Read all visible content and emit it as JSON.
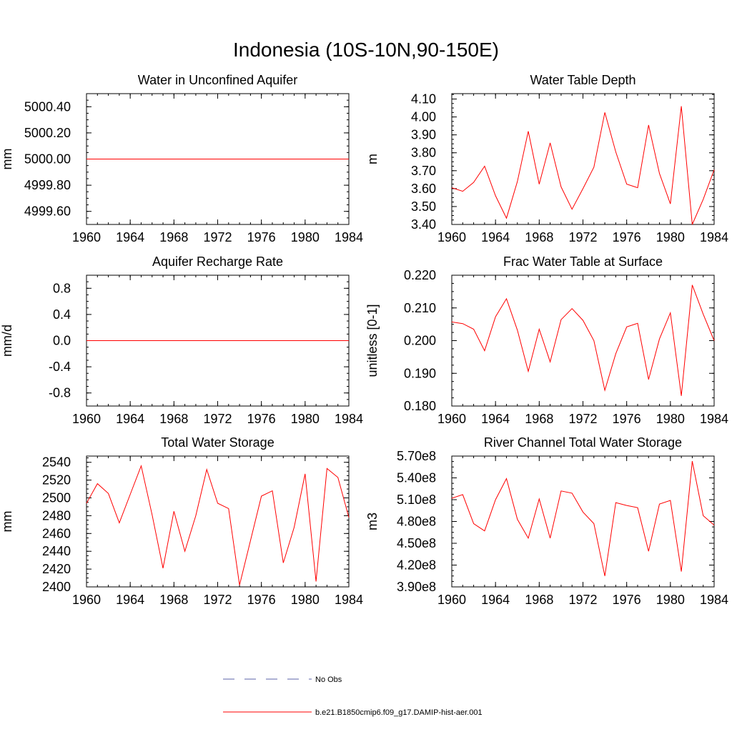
{
  "title": "Indonesia (10S-10N,90-150E)",
  "chart_data": [
    {
      "type": "line",
      "title": "Water in Unconfined Aquifer",
      "ylabel": "mm",
      "xlim": [
        1960,
        1984
      ],
      "ylim": [
        4999.5,
        5000.5
      ],
      "yticks": [
        4999.6,
        4999.8,
        5000.0,
        5000.2,
        5000.4
      ],
      "ytick_labels": [
        "4999.60",
        "4999.80",
        "5000.00",
        "5000.20",
        "5000.40"
      ],
      "xticks": [
        1960,
        1964,
        1968,
        1972,
        1976,
        1980,
        1984
      ],
      "xtick_labels": [
        "1960",
        "1964",
        "1968",
        "1972",
        "1976",
        "1980",
        "1984"
      ],
      "x": [
        1960,
        1961,
        1962,
        1963,
        1964,
        1965,
        1966,
        1967,
        1968,
        1969,
        1970,
        1971,
        1972,
        1973,
        1974,
        1975,
        1976,
        1977,
        1978,
        1979,
        1980,
        1981,
        1982,
        1983,
        1984
      ],
      "series": [
        {
          "name": "b.e21.B1850cmip6.f09_g17.DAMIP-hist-aer.001",
          "color": "#ff0000",
          "values": [
            5000,
            5000,
            5000,
            5000,
            5000,
            5000,
            5000,
            5000,
            5000,
            5000,
            5000,
            5000,
            5000,
            5000,
            5000,
            5000,
            5000,
            5000,
            5000,
            5000,
            5000,
            5000,
            5000,
            5000,
            5000
          ]
        }
      ]
    },
    {
      "type": "line",
      "title": "Water Table Depth",
      "ylabel": "m",
      "xlim": [
        1960,
        1984
      ],
      "ylim": [
        3.4,
        4.13
      ],
      "yticks": [
        3.4,
        3.5,
        3.6,
        3.7,
        3.8,
        3.9,
        4.0,
        4.1
      ],
      "ytick_labels": [
        "3.40",
        "3.50",
        "3.60",
        "3.70",
        "3.80",
        "3.90",
        "4.00",
        "4.10"
      ],
      "xticks": [
        1960,
        1964,
        1968,
        1972,
        1976,
        1980,
        1984
      ],
      "xtick_labels": [
        "1960",
        "1964",
        "1968",
        "1972",
        "1976",
        "1980",
        "1984"
      ],
      "x": [
        1960,
        1961,
        1962,
        1963,
        1964,
        1965,
        1966,
        1967,
        1968,
        1969,
        1970,
        1971,
        1972,
        1973,
        1974,
        1975,
        1976,
        1977,
        1978,
        1979,
        1980,
        1981,
        1982,
        1983,
        1984
      ],
      "series": [
        {
          "name": "b.e21.B1850cmip6.f09_g17.DAMIP-hist-aer.001",
          "color": "#ff0000",
          "values": [
            3.605,
            3.585,
            3.635,
            3.725,
            3.56,
            3.435,
            3.64,
            3.92,
            3.625,
            3.855,
            3.61,
            3.485,
            3.6,
            3.72,
            4.025,
            3.805,
            3.625,
            3.605,
            3.955,
            3.685,
            3.515,
            4.06,
            3.4,
            3.54,
            3.705
          ]
        }
      ]
    },
    {
      "type": "line",
      "title": "Aquifer Recharge Rate",
      "ylabel": "mm/d",
      "xlim": [
        1960,
        1984
      ],
      "ylim": [
        -1.0,
        1.0
      ],
      "yticks": [
        -0.8,
        -0.4,
        0.0,
        0.4,
        0.8
      ],
      "ytick_labels": [
        "-0.8",
        "-0.4",
        "0.0",
        "0.4",
        "0.8"
      ],
      "xticks": [
        1960,
        1964,
        1968,
        1972,
        1976,
        1980,
        1984
      ],
      "xtick_labels": [
        "1960",
        "1964",
        "1968",
        "1972",
        "1976",
        "1980",
        "1984"
      ],
      "x": [
        1960,
        1961,
        1962,
        1963,
        1964,
        1965,
        1966,
        1967,
        1968,
        1969,
        1970,
        1971,
        1972,
        1973,
        1974,
        1975,
        1976,
        1977,
        1978,
        1979,
        1980,
        1981,
        1982,
        1983,
        1984
      ],
      "series": [
        {
          "name": "b.e21.B1850cmip6.f09_g17.DAMIP-hist-aer.001",
          "color": "#ff0000",
          "values": [
            0,
            0,
            0,
            0,
            0,
            0,
            0,
            0,
            0,
            0,
            0,
            0,
            0,
            0,
            0,
            0,
            0,
            0,
            0,
            0,
            0,
            0,
            0,
            0,
            0
          ]
        }
      ]
    },
    {
      "type": "line",
      "title": "Frac Water Table at Surface",
      "ylabel": "unitless [0-1]",
      "xlim": [
        1960,
        1984
      ],
      "ylim": [
        0.18,
        0.22
      ],
      "yticks": [
        0.18,
        0.19,
        0.2,
        0.21,
        0.22
      ],
      "ytick_labels": [
        "0.180",
        "0.190",
        "0.200",
        "0.210",
        "0.220"
      ],
      "xticks": [
        1960,
        1964,
        1968,
        1972,
        1976,
        1980,
        1984
      ],
      "xtick_labels": [
        "1960",
        "1964",
        "1968",
        "1972",
        "1976",
        "1980",
        "1984"
      ],
      "x": [
        1960,
        1961,
        1962,
        1963,
        1964,
        1965,
        1966,
        1967,
        1968,
        1969,
        1970,
        1971,
        1972,
        1973,
        1974,
        1975,
        1976,
        1977,
        1978,
        1979,
        1980,
        1981,
        1982,
        1983,
        1984
      ],
      "series": [
        {
          "name": "b.e21.B1850cmip6.f09_g17.DAMIP-hist-aer.001",
          "color": "#ff0000",
          "values": [
            0.2057,
            0.2052,
            0.2035,
            0.1969,
            0.2073,
            0.2128,
            0.2032,
            0.1906,
            0.2035,
            0.1935,
            0.2064,
            0.2098,
            0.2062,
            0.2,
            0.1848,
            0.196,
            0.2042,
            0.2053,
            0.1881,
            0.2005,
            0.2085,
            0.1831,
            0.217,
            0.2081,
            0.2
          ]
        }
      ]
    },
    {
      "type": "line",
      "title": "Total Water Storage",
      "ylabel": "mm",
      "xlim": [
        1960,
        1984
      ],
      "ylim": [
        2400,
        2547
      ],
      "yticks": [
        2400,
        2420,
        2440,
        2460,
        2480,
        2500,
        2520,
        2540
      ],
      "ytick_labels": [
        "2400",
        "2420",
        "2440",
        "2460",
        "2480",
        "2500",
        "2520",
        "2540"
      ],
      "xticks": [
        1960,
        1964,
        1968,
        1972,
        1976,
        1980,
        1984
      ],
      "xtick_labels": [
        "1960",
        "1964",
        "1968",
        "1972",
        "1976",
        "1980",
        "1984"
      ],
      "x": [
        1960,
        1961,
        1962,
        1963,
        1964,
        1965,
        1966,
        1967,
        1968,
        1969,
        1970,
        1971,
        1972,
        1973,
        1974,
        1975,
        1976,
        1977,
        1978,
        1979,
        1980,
        1981,
        1982,
        1983,
        1984
      ],
      "series": [
        {
          "name": "b.e21.B1850cmip6.f09_g17.DAMIP-hist-aer.001",
          "color": "#ff0000",
          "values": [
            2494,
            2516,
            2505,
            2472,
            2504,
            2536,
            2481,
            2421,
            2485,
            2440,
            2480,
            2532,
            2494,
            2488,
            2402,
            2452,
            2502,
            2508,
            2427,
            2467,
            2527,
            2406,
            2533,
            2523,
            2478
          ]
        }
      ]
    },
    {
      "type": "line",
      "title": "River Channel Total Water Storage",
      "ylabel": "m3",
      "xlim": [
        1960,
        1984
      ],
      "ylim": [
        390000000.0,
        570000000.0
      ],
      "yticks": [
        390000000.0,
        420000000.0,
        450000000.0,
        480000000.0,
        510000000.0,
        540000000.0,
        570000000.0
      ],
      "ytick_labels": [
        "3.90e8",
        "4.20e8",
        "4.50e8",
        "4.80e8",
        "5.10e8",
        "5.40e8",
        "5.70e8"
      ],
      "xticks": [
        1960,
        1964,
        1968,
        1972,
        1976,
        1980,
        1984
      ],
      "xtick_labels": [
        "1960",
        "1964",
        "1968",
        "1972",
        "1976",
        "1980",
        "1984"
      ],
      "x": [
        1960,
        1961,
        1962,
        1963,
        1964,
        1965,
        1966,
        1967,
        1968,
        1969,
        1970,
        1971,
        1972,
        1973,
        1974,
        1975,
        1976,
        1977,
        1978,
        1979,
        1980,
        1981,
        1982,
        1983,
        1984
      ],
      "series": [
        {
          "name": "b.e21.B1850cmip6.f09_g17.DAMIP-hist-aer.001",
          "color": "#ff0000",
          "values": [
            512000000.0,
            517000000.0,
            477000000.0,
            467000000.0,
            510000000.0,
            539000000.0,
            483000000.0,
            457000000.0,
            511000000.0,
            457000000.0,
            522000000.0,
            519000000.0,
            493000000.0,
            477000000.0,
            405000000.0,
            506000000.0,
            502000000.0,
            499000000.0,
            439000000.0,
            504000000.0,
            509000000.0,
            411000000.0,
            563000000.0,
            488000000.0,
            475000000.0
          ]
        }
      ]
    }
  ],
  "legend": {
    "items": [
      {
        "label": "No Obs",
        "color": "#5b63a8",
        "style": "dashed"
      },
      {
        "label": "b.e21.B1850cmip6.f09_g17.DAMIP-hist-aer.001",
        "color": "#ff0000",
        "style": "solid"
      }
    ]
  }
}
